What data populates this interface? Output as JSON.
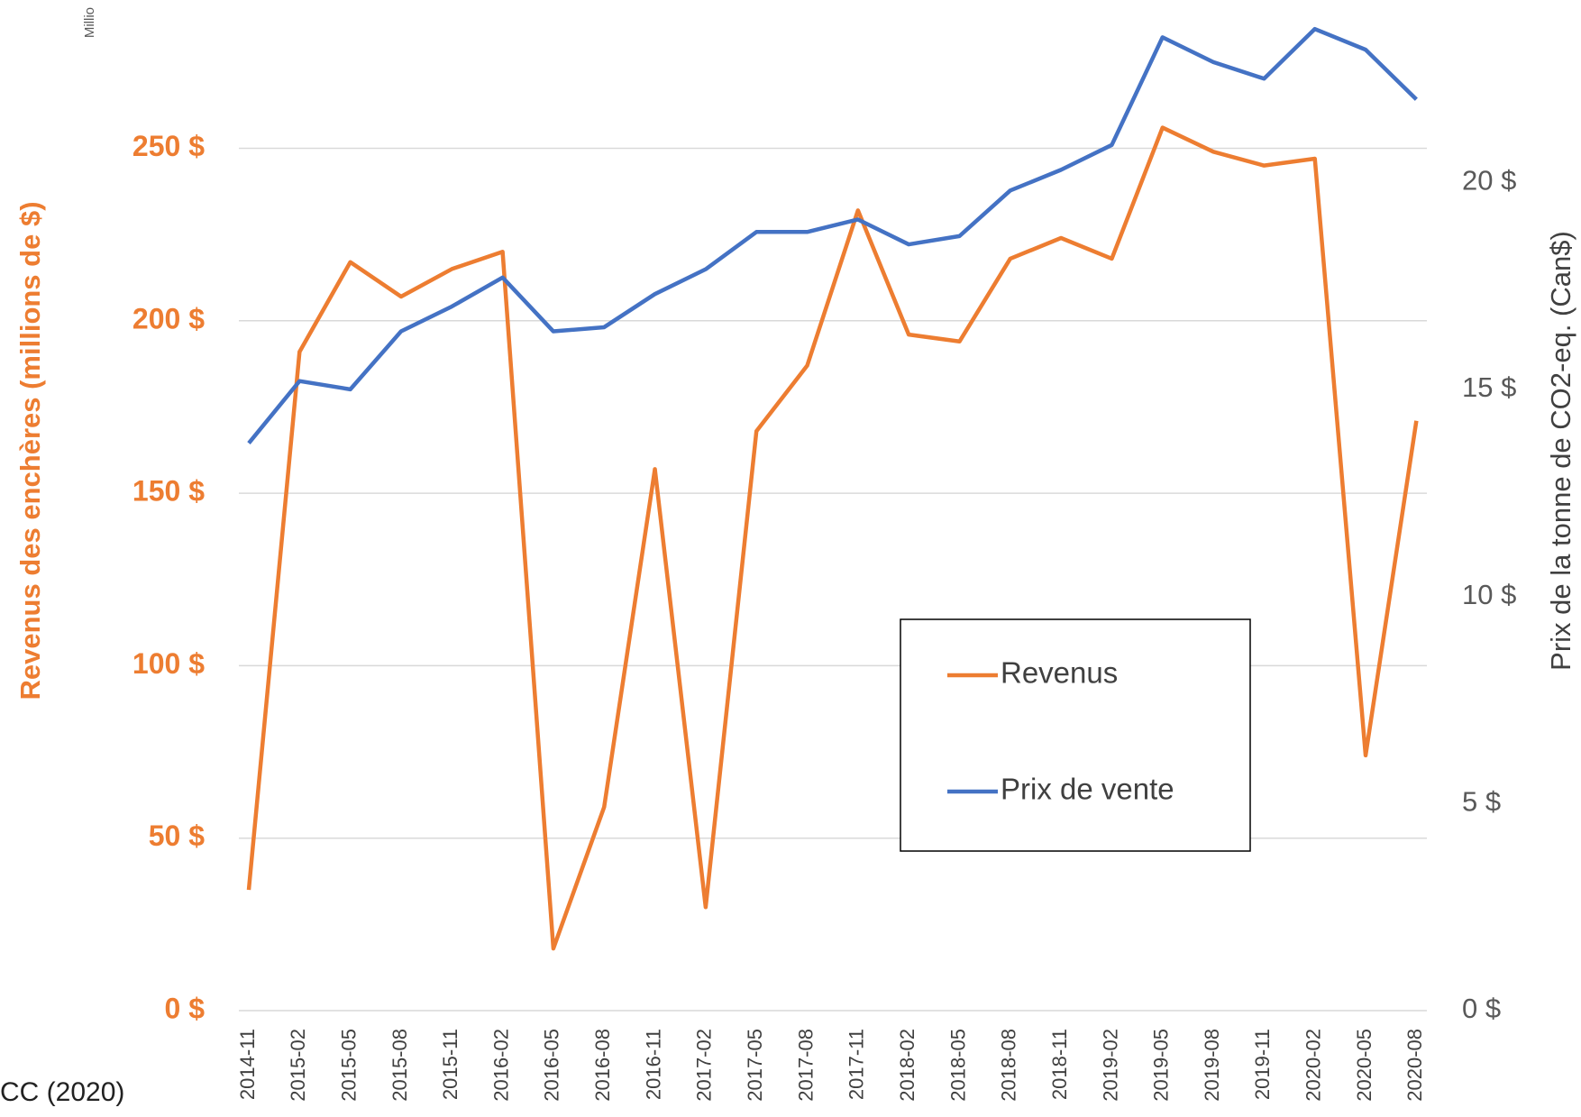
{
  "chart_data": {
    "type": "line",
    "y_label": "Revenus des enchères (millions de $)",
    "y2_label": "Prix de la tonne de CO2-eq. (Can$)",
    "corner_text": "Millio",
    "source": "CC (2020)",
    "categories": [
      "2014-11",
      "2015-02",
      "2015-05",
      "2015-08",
      "2015-11",
      "2016-02",
      "2016-05",
      "2016-08",
      "2016-11",
      "2017-02",
      "2017-05",
      "2017-08",
      "2017-11",
      "2018-02",
      "2018-05",
      "2018-08",
      "2018-11",
      "2019-02",
      "2019-05",
      "2019-08",
      "2019-11",
      "2020-02",
      "2020-05",
      "2020-08"
    ],
    "series": [
      {
        "name": "Revenus",
        "color": "#ed7d31",
        "values": [
          35,
          191,
          217,
          207,
          215,
          220,
          18,
          59,
          157,
          30,
          168,
          187,
          232,
          196,
          194,
          218,
          224,
          218,
          256,
          249,
          245,
          247,
          74,
          171
        ]
      },
      {
        "name": "Prix de vente",
        "color": "#4472c4",
        "axis": "y2",
        "values": [
          13.7,
          15.2,
          15.0,
          16.4,
          17.0,
          17.7,
          16.4,
          16.5,
          17.3,
          17.9,
          18.8,
          18.8,
          19.1,
          18.5,
          18.7,
          19.8,
          20.3,
          20.9,
          23.5,
          22.9,
          22.5,
          23.7,
          23.2,
          22.0
        ]
      }
    ],
    "ylim": [
      0,
      293
    ],
    "yticks": [
      {
        "value": 0,
        "label": "0 $"
      },
      {
        "value": 50,
        "label": "50 $"
      },
      {
        "value": 100,
        "label": "100 $"
      },
      {
        "value": 150,
        "label": "150 $"
      },
      {
        "value": 200,
        "label": "200 $"
      },
      {
        "value": 250,
        "label": "250 $"
      }
    ],
    "y2lim": [
      0,
      24.4
    ],
    "y2ticks": [
      {
        "value": 0,
        "label": "0 $"
      },
      {
        "value": 5,
        "label": "5 $"
      },
      {
        "value": 10,
        "label": "10 $"
      },
      {
        "value": 15,
        "label": "15 $"
      },
      {
        "value": 20,
        "label": "20 $"
      }
    ],
    "grid": true
  }
}
